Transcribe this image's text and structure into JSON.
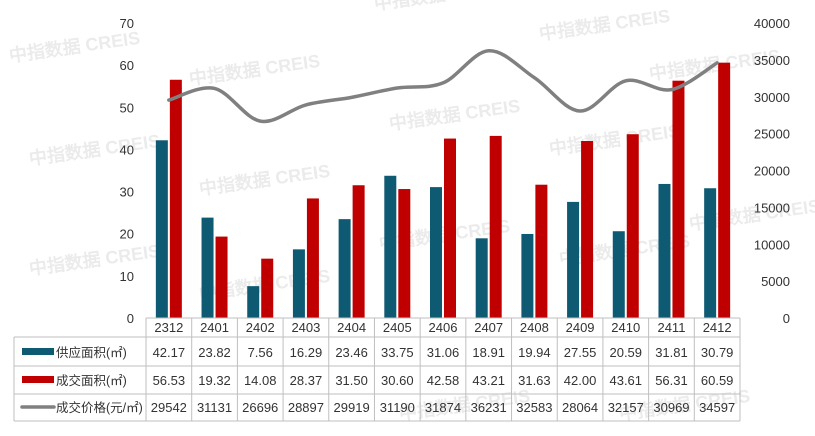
{
  "chart_data": {
    "type": "bar",
    "categories": [
      "2312",
      "2401",
      "2402",
      "2403",
      "2404",
      "2405",
      "2406",
      "2407",
      "2408",
      "2409",
      "2410",
      "2411",
      "2412"
    ],
    "series": [
      {
        "name": "供应面积(㎡)",
        "type": "bar",
        "axis": "left",
        "color": "#0f5a73",
        "values": [
          42.17,
          23.82,
          7.56,
          16.29,
          23.46,
          33.75,
          31.06,
          18.91,
          19.94,
          27.55,
          20.59,
          31.81,
          30.79
        ]
      },
      {
        "name": "成交面积(㎡)",
        "type": "bar",
        "axis": "left",
        "color": "#c00000",
        "values": [
          56.53,
          19.32,
          14.08,
          28.37,
          31.5,
          30.6,
          42.58,
          43.21,
          31.63,
          42.0,
          43.61,
          56.31,
          60.59
        ]
      },
      {
        "name": "成交价格(元/㎡)",
        "type": "line",
        "axis": "right",
        "color": "#808080",
        "values": [
          29542,
          31131,
          26696,
          28897,
          29919,
          31190,
          31874,
          36231,
          32583,
          28064,
          32157,
          30969,
          34597
        ]
      }
    ],
    "y_left": {
      "min": 0,
      "max": 70,
      "ticks": [
        0,
        10,
        20,
        30,
        40,
        50,
        60,
        70
      ]
    },
    "y_right": {
      "min": 0,
      "max": 40000,
      "ticks": [
        0,
        5000,
        10000,
        15000,
        20000,
        25000,
        30000,
        35000,
        40000
      ]
    },
    "data_table": true,
    "grid": false
  },
  "watermark": "中指数据 CREIS"
}
